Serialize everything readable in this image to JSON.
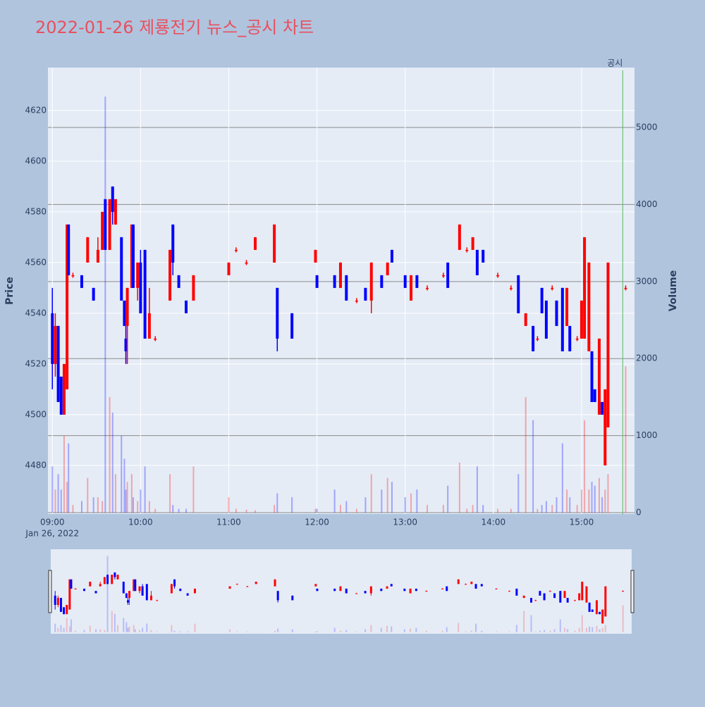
{
  "chart_data": {
    "type": "candlestick",
    "title": "2022-01-26 제룡전기 뉴스_공시 차트",
    "y_label": "Price",
    "y2_label": "Volume",
    "x_date_label": "Jan 26, 2022",
    "annotation": {
      "x": "15:28",
      "text": "공시"
    },
    "increasing_color": "#ff0000",
    "decreasing_color": "#0000ff",
    "grid": true,
    "xlim": [
      "08:57",
      "15:36"
    ],
    "xticks": [
      "09:00",
      "10:00",
      "11:00",
      "12:00",
      "13:00",
      "14:00",
      "15:00"
    ],
    "ylim": [
      4460.8,
      4636.9
    ],
    "yticks": [
      4480,
      4500,
      4520,
      4540,
      4560,
      4580,
      4600,
      4620
    ],
    "y2lim": [
      -18,
      5777
    ],
    "y2ticks": [
      0,
      1000,
      2000,
      3000,
      4000,
      5000
    ],
    "x": [
      "09:00",
      "09:02",
      "09:04",
      "09:06",
      "09:08",
      "09:10",
      "09:11",
      "09:14",
      "09:20",
      "09:24",
      "09:28",
      "09:31",
      "09:34",
      "09:36",
      "09:39",
      "09:41",
      "09:43",
      "09:47",
      "09:49",
      "09:50",
      "09:51",
      "09:54",
      "09:55",
      "09:58",
      "10:00",
      "10:03",
      "10:06",
      "10:10",
      "10:20",
      "10:22",
      "10:26",
      "10:31",
      "10:36",
      "11:00",
      "11:05",
      "11:12",
      "11:18",
      "11:31",
      "11:33",
      "11:43",
      "11:59",
      "12:00",
      "12:12",
      "12:16",
      "12:20",
      "12:27",
      "12:33",
      "12:37",
      "12:44",
      "12:48",
      "12:51",
      "13:00",
      "13:04",
      "13:08",
      "13:15",
      "13:26",
      "13:29",
      "13:37",
      "13:42",
      "13:46",
      "13:49",
      "13:53",
      "14:03",
      "14:12",
      "14:17",
      "14:22",
      "14:27",
      "14:30",
      "14:33",
      "14:36",
      "14:40",
      "14:43",
      "14:47",
      "14:50",
      "14:52",
      "14:57",
      "15:00",
      "15:02",
      "15:05",
      "15:07",
      "15:09",
      "15:12",
      "15:14",
      "15:16",
      "15:18",
      "15:30"
    ],
    "open": [
      4540,
      4520,
      4535,
      4515,
      4500,
      4510,
      4575,
      4555,
      4555,
      4560,
      4550,
      4560,
      4565,
      4585,
      4565,
      4590,
      4575,
      4570,
      4545,
      4530,
      4535,
      4550,
      4575,
      4550,
      4560,
      4565,
      4530,
      4530,
      4545,
      4575,
      4555,
      4545,
      4545,
      4555,
      4565,
      4560,
      4565,
      4560,
      4550,
      4540,
      4560,
      4555,
      4555,
      4550,
      4555,
      4545,
      4550,
      4545,
      4555,
      4555,
      4565,
      4555,
      4545,
      4555,
      4550,
      4555,
      4560,
      4565,
      4565,
      4565,
      4565,
      4565,
      4555,
      4550,
      4555,
      4535,
      4535,
      4530,
      4550,
      4545,
      4550,
      4545,
      4550,
      4535,
      4535,
      4530,
      4530,
      4530,
      4525,
      4525,
      4510,
      4500,
      4505,
      4480,
      4495,
      4550
    ],
    "high": [
      4550,
      4540,
      4535,
      4515,
      4520,
      4575,
      4575,
      4556,
      4555,
      4570,
      4550,
      4570,
      4580,
      4585,
      4585,
      4590,
      4585,
      4570,
      4545,
      4535,
      4550,
      4575,
      4575,
      4560,
      4565,
      4565,
      4550,
      4531,
      4565,
      4575,
      4555,
      4545,
      4555,
      4560,
      4566,
      4561,
      4570,
      4575,
      4550,
      4540,
      4565,
      4555,
      4555,
      4560,
      4555,
      4546,
      4550,
      4560,
      4555,
      4560,
      4565,
      4555,
      4555,
      4555,
      4551,
      4556,
      4560,
      4575,
      4566,
      4570,
      4565,
      4565,
      4556,
      4551,
      4555,
      4540,
      4535,
      4531,
      4550,
      4545,
      4551,
      4545,
      4550,
      4550,
      4535,
      4531,
      4545,
      4570,
      4560,
      4525,
      4510,
      4530,
      4505,
      4510,
      4560,
      4551
    ],
    "low": [
      4510,
      4515,
      4505,
      4500,
      4500,
      4510,
      4555,
      4554,
      4550,
      4560,
      4545,
      4560,
      4565,
      4565,
      4565,
      4575,
      4575,
      4545,
      4535,
      4520,
      4520,
      4550,
      4550,
      4545,
      4540,
      4530,
      4530,
      4529,
      4545,
      4555,
      4550,
      4540,
      4545,
      4555,
      4564,
      4559,
      4565,
      4560,
      4525,
      4530,
      4560,
      4550,
      4550,
      4550,
      4545,
      4544,
      4545,
      4540,
      4550,
      4555,
      4560,
      4550,
      4545,
      4550,
      4549,
      4554,
      4550,
      4565,
      4564,
      4565,
      4555,
      4560,
      4554,
      4549,
      4540,
      4535,
      4525,
      4529,
      4540,
      4530,
      4549,
      4535,
      4525,
      4535,
      4525,
      4529,
      4530,
      4530,
      4525,
      4505,
      4505,
      4500,
      4500,
      4480,
      4495,
      4549
    ],
    "close": [
      4520,
      4535,
      4505,
      4500,
      4520,
      4575,
      4555,
      4555,
      4550,
      4570,
      4545,
      4565,
      4580,
      4565,
      4585,
      4580,
      4585,
      4545,
      4535,
      4525,
      4550,
      4575,
      4550,
      4560,
      4540,
      4530,
      4540,
      4530,
      4565,
      4560,
      4550,
      4540,
      4555,
      4560,
      4565,
      4560,
      4570,
      4575,
      4530,
      4530,
      4565,
      4550,
      4550,
      4560,
      4545,
      4545,
      4545,
      4560,
      4550,
      4560,
      4560,
      4550,
      4555,
      4550,
      4550,
      4555,
      4550,
      4575,
      4565,
      4570,
      4555,
      4560,
      4555,
      4550,
      4540,
      4540,
      4525,
      4530,
      4540,
      4530,
      4550,
      4535,
      4525,
      4550,
      4525,
      4530,
      4545,
      4570,
      4560,
      4505,
      4505,
      4530,
      4500,
      4510,
      4560,
      4550
    ],
    "volume": [
      600,
      300,
      500,
      300,
      1000,
      400,
      900,
      100,
      150,
      450,
      200,
      200,
      150,
      5400,
      1500,
      1300,
      500,
      1000,
      700,
      300,
      400,
      500,
      200,
      150,
      300,
      600,
      150,
      50,
      500,
      100,
      50,
      50,
      600,
      200,
      50,
      40,
      30,
      100,
      250,
      200,
      50,
      50,
      300,
      100,
      150,
      50,
      200,
      500,
      300,
      450,
      400,
      200,
      250,
      300,
      100,
      100,
      350,
      650,
      50,
      100,
      600,
      100,
      50,
      50,
      500,
      1500,
      1200,
      50,
      100,
      150,
      100,
      200,
      900,
      300,
      200,
      100,
      300,
      1200,
      300,
      400,
      350,
      450,
      200,
      300,
      500,
      1900
    ]
  }
}
